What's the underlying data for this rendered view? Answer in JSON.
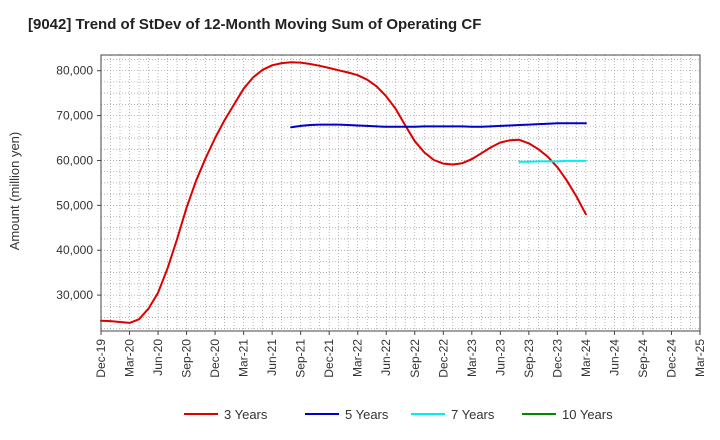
{
  "chart_data": {
    "type": "line",
    "title": "[9042]  Trend of StDev of 12-Month Moving Sum of Operating CF",
    "xlabel": "",
    "ylabel": "Amount (million yen)",
    "ylim": [
      22000,
      83500
    ],
    "yticks": [
      30000,
      40000,
      50000,
      60000,
      70000,
      80000
    ],
    "ytick_labels": [
      "30,000",
      "40,000",
      "50,000",
      "60,000",
      "70,000",
      "80,000"
    ],
    "xlim": [
      "2019-12",
      "2025-03"
    ],
    "xticks": [
      "Dec-19",
      "Mar-20",
      "Jun-20",
      "Sep-20",
      "Dec-20",
      "Mar-21",
      "Jun-21",
      "Sep-21",
      "Dec-21",
      "Mar-22",
      "Jun-22",
      "Sep-22",
      "Dec-22",
      "Mar-23",
      "Jun-23",
      "Sep-23",
      "Dec-23",
      "Mar-24",
      "Jun-24",
      "Sep-24",
      "Dec-24",
      "Mar-25"
    ],
    "grid": true,
    "legend_position": "bottom",
    "series": [
      {
        "name": "3 Years",
        "color": "#dd0000",
        "points": [
          [
            "2019-12",
            24300
          ],
          [
            "2020-01",
            24200
          ],
          [
            "2020-02",
            24000
          ],
          [
            "2020-03",
            23800
          ],
          [
            "2020-04",
            24600
          ],
          [
            "2020-05",
            27000
          ],
          [
            "2020-06",
            30500
          ],
          [
            "2020-07",
            36000
          ],
          [
            "2020-08",
            42500
          ],
          [
            "2020-09",
            49500
          ],
          [
            "2020-10",
            55500
          ],
          [
            "2020-11",
            60500
          ],
          [
            "2020-12",
            65000
          ],
          [
            "2021-01",
            69000
          ],
          [
            "2021-02",
            72500
          ],
          [
            "2021-03",
            76000
          ],
          [
            "2021-04",
            78500
          ],
          [
            "2021-05",
            80200
          ],
          [
            "2021-06",
            81200
          ],
          [
            "2021-07",
            81700
          ],
          [
            "2021-08",
            81900
          ],
          [
            "2021-09",
            81800
          ],
          [
            "2021-10",
            81500
          ],
          [
            "2021-11",
            81100
          ],
          [
            "2021-12",
            80600
          ],
          [
            "2022-01",
            80100
          ],
          [
            "2022-02",
            79600
          ],
          [
            "2022-03",
            79000
          ],
          [
            "2022-04",
            78000
          ],
          [
            "2022-05",
            76500
          ],
          [
            "2022-06",
            74300
          ],
          [
            "2022-07",
            71500
          ],
          [
            "2022-08",
            67800
          ],
          [
            "2022-09",
            64300
          ],
          [
            "2022-10",
            61800
          ],
          [
            "2022-11",
            60100
          ],
          [
            "2022-12",
            59300
          ],
          [
            "2023-01",
            59100
          ],
          [
            "2023-02",
            59400
          ],
          [
            "2023-03",
            60300
          ],
          [
            "2023-04",
            61600
          ],
          [
            "2023-05",
            62900
          ],
          [
            "2023-06",
            64000
          ],
          [
            "2023-07",
            64500
          ],
          [
            "2023-08",
            64600
          ],
          [
            "2023-09",
            63800
          ],
          [
            "2023-10",
            62500
          ],
          [
            "2023-11",
            60800
          ],
          [
            "2023-12",
            58500
          ],
          [
            "2024-01",
            55500
          ],
          [
            "2024-02",
            52000
          ],
          [
            "2024-03",
            48000
          ]
        ]
      },
      {
        "name": "5 Years",
        "color": "#0000cc",
        "points": [
          [
            "2021-08",
            67400
          ],
          [
            "2021-09",
            67700
          ],
          [
            "2021-10",
            67900
          ],
          [
            "2021-11",
            68000
          ],
          [
            "2021-12",
            68000
          ],
          [
            "2022-01",
            68000
          ],
          [
            "2022-02",
            67900
          ],
          [
            "2022-03",
            67800
          ],
          [
            "2022-04",
            67700
          ],
          [
            "2022-05",
            67600
          ],
          [
            "2022-06",
            67500
          ],
          [
            "2022-07",
            67500
          ],
          [
            "2022-08",
            67500
          ],
          [
            "2022-09",
            67500
          ],
          [
            "2022-10",
            67600
          ],
          [
            "2022-11",
            67600
          ],
          [
            "2022-12",
            67600
          ],
          [
            "2023-01",
            67600
          ],
          [
            "2023-02",
            67600
          ],
          [
            "2023-03",
            67500
          ],
          [
            "2023-04",
            67500
          ],
          [
            "2023-05",
            67600
          ],
          [
            "2023-06",
            67700
          ],
          [
            "2023-07",
            67800
          ],
          [
            "2023-08",
            67900
          ],
          [
            "2023-09",
            68000
          ],
          [
            "2023-10",
            68100
          ],
          [
            "2023-11",
            68200
          ],
          [
            "2023-12",
            68300
          ],
          [
            "2024-01",
            68300
          ],
          [
            "2024-02",
            68300
          ],
          [
            "2024-03",
            68300
          ]
        ]
      },
      {
        "name": "7 Years",
        "color": "#00eeee",
        "points": [
          [
            "2023-08",
            59700
          ],
          [
            "2023-09",
            59700
          ],
          [
            "2023-10",
            59800
          ],
          [
            "2023-11",
            59800
          ],
          [
            "2023-12",
            59800
          ],
          [
            "2024-01",
            59900
          ],
          [
            "2024-02",
            59900
          ],
          [
            "2024-03",
            59900
          ]
        ]
      },
      {
        "name": "10 Years",
        "color": "#008800",
        "points": []
      }
    ]
  }
}
